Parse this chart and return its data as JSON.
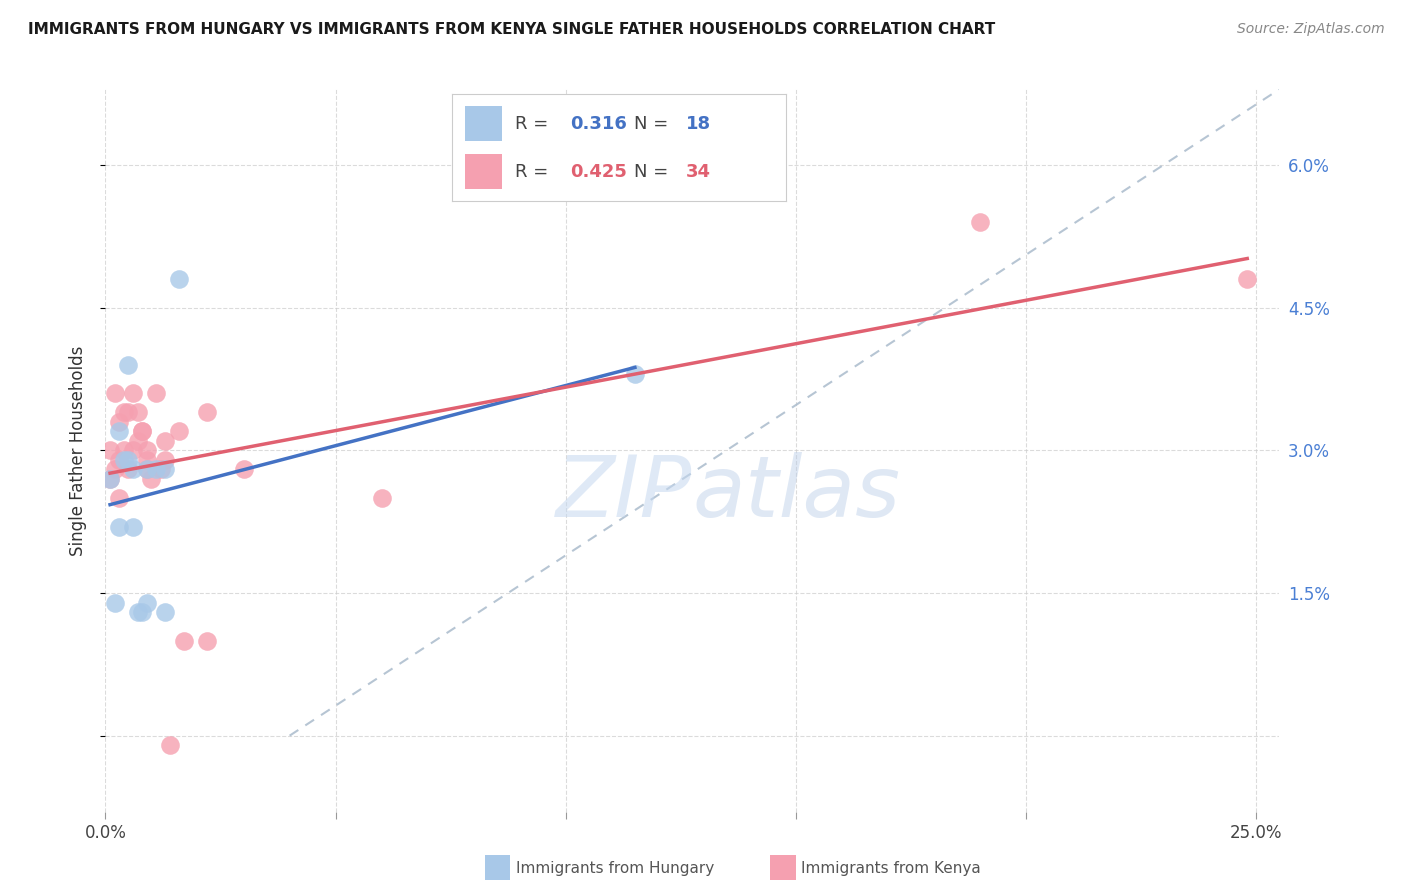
{
  "title": "IMMIGRANTS FROM HUNGARY VS IMMIGRANTS FROM KENYA SINGLE FATHER HOUSEHOLDS CORRELATION CHART",
  "source": "Source: ZipAtlas.com",
  "ylabel": "Single Father Households",
  "xlim": [
    0.0,
    0.255
  ],
  "ylim": [
    -0.008,
    0.068
  ],
  "ytick_vals": [
    0.0,
    0.015,
    0.03,
    0.045,
    0.06
  ],
  "ytick_labels": [
    "",
    "1.5%",
    "3.0%",
    "4.5%",
    "6.0%"
  ],
  "xtick_vals": [
    0.0,
    0.05,
    0.1,
    0.15,
    0.2,
    0.25
  ],
  "xtick_labels": [
    "0.0%",
    "",
    "",
    "",
    "",
    "25.0%"
  ],
  "hungary_color": "#a8c8e8",
  "kenya_color": "#f5a0b0",
  "hungary_line_color": "#4472c4",
  "kenya_line_color": "#e06070",
  "diagonal_color": "#aabbcc",
  "watermark_zip": "ZIP",
  "watermark_atlas": "atlas",
  "hungary_x": [
    0.001,
    0.002,
    0.003,
    0.003,
    0.004,
    0.005,
    0.005,
    0.006,
    0.006,
    0.007,
    0.008,
    0.009,
    0.009,
    0.011,
    0.013,
    0.013,
    0.016,
    0.115
  ],
  "hungary_y": [
    0.027,
    0.014,
    0.022,
    0.032,
    0.029,
    0.039,
    0.029,
    0.028,
    0.022,
    0.013,
    0.013,
    0.014,
    0.028,
    0.028,
    0.013,
    0.028,
    0.048,
    0.038
  ],
  "kenya_x": [
    0.001,
    0.001,
    0.002,
    0.002,
    0.003,
    0.003,
    0.003,
    0.004,
    0.004,
    0.005,
    0.005,
    0.006,
    0.006,
    0.007,
    0.007,
    0.008,
    0.008,
    0.009,
    0.009,
    0.009,
    0.01,
    0.011,
    0.012,
    0.013,
    0.013,
    0.014,
    0.016,
    0.017,
    0.022,
    0.022,
    0.03,
    0.06,
    0.19,
    0.248
  ],
  "kenya_y": [
    0.03,
    0.027,
    0.036,
    0.028,
    0.025,
    0.029,
    0.033,
    0.03,
    0.034,
    0.034,
    0.028,
    0.03,
    0.036,
    0.034,
    0.031,
    0.032,
    0.032,
    0.028,
    0.029,
    0.03,
    0.027,
    0.036,
    0.028,
    0.031,
    0.029,
    -0.001,
    0.032,
    0.01,
    0.034,
    0.01,
    0.028,
    0.025,
    0.054,
    0.048
  ],
  "dot_alpha": 0.8,
  "dot_size": 180,
  "title_fontsize": 11,
  "source_fontsize": 10,
  "tick_fontsize": 12,
  "ylabel_fontsize": 12
}
